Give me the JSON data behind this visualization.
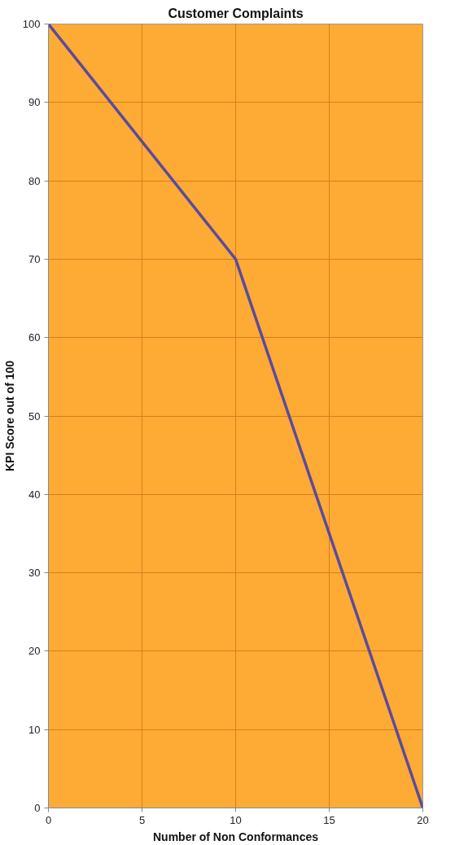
{
  "chart_data": {
    "type": "line",
    "title": "Customer Complaints",
    "xlabel": "Number of Non Conformances",
    "ylabel": "KPI Score out of 100",
    "x": [
      0,
      10,
      20
    ],
    "series": [
      {
        "color": "#5b4a9e",
        "values": [
          100,
          70,
          0
        ]
      }
    ],
    "xlim": [
      0,
      20
    ],
    "xticks": [
      0,
      5,
      10,
      15,
      20
    ],
    "ylim": [
      0,
      100
    ],
    "yticks": [
      0,
      10,
      20,
      30,
      40,
      50,
      60,
      70,
      80,
      90,
      100
    ],
    "grid": true
  }
}
